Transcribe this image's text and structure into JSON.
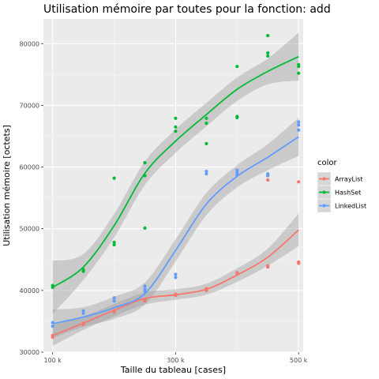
{
  "chart_data": {
    "type": "scatter",
    "title": "Utilisation mémoire par toutes pour la fonction: add",
    "xlabel": "Taille du tableau [cases]",
    "ylabel": "Utilisation mémoire [octets]",
    "x_ticks": [
      {
        "value": 100000,
        "label": "100 k"
      },
      {
        "value": 300000,
        "label": "300 k"
      },
      {
        "value": 500000,
        "label": "500 k"
      }
    ],
    "y_ticks": [
      {
        "value": 30000,
        "label": "30000"
      },
      {
        "value": 40000,
        "label": "40000"
      },
      {
        "value": 50000,
        "label": "50000"
      },
      {
        "value": 60000,
        "label": "60000"
      },
      {
        "value": 70000,
        "label": "70000"
      },
      {
        "value": 80000,
        "label": "80000"
      }
    ],
    "xlim": [
      85000,
      507500
    ],
    "ylim": [
      30000,
      84000
    ],
    "grid": true,
    "smooth": "loess with confidence band",
    "legend": {
      "title": "color",
      "position": "right"
    },
    "series": [
      {
        "name": "ArrayList",
        "color": "#F8766D",
        "points": [
          [
            100000,
            32700
          ],
          [
            100000,
            32400
          ],
          [
            150000,
            34700
          ],
          [
            150000,
            34500
          ],
          [
            200000,
            36500
          ],
          [
            200000,
            36700
          ],
          [
            250000,
            38500
          ],
          [
            250000,
            38300
          ],
          [
            300000,
            39400
          ],
          [
            300000,
            39200
          ],
          [
            350000,
            40300
          ],
          [
            350000,
            40000
          ],
          [
            400000,
            42900
          ],
          [
            400000,
            42700
          ],
          [
            450000,
            43800
          ],
          [
            450000,
            44000
          ],
          [
            450000,
            57900
          ],
          [
            500000,
            57600
          ],
          [
            500000,
            44600
          ],
          [
            500000,
            44400
          ]
        ],
        "smooth": [
          [
            100000,
            32700
          ],
          [
            150000,
            34700
          ],
          [
            200000,
            36800
          ],
          [
            250000,
            38700
          ],
          [
            300000,
            39300
          ],
          [
            350000,
            40200
          ],
          [
            400000,
            42500
          ],
          [
            450000,
            45400
          ],
          [
            500000,
            49800
          ]
        ],
        "band": [
          [
            100000,
            31000,
            34400
          ],
          [
            150000,
            33600,
            35800
          ],
          [
            200000,
            35800,
            37800
          ],
          [
            250000,
            37700,
            39700
          ],
          [
            300000,
            38500,
            40200
          ],
          [
            350000,
            39300,
            41100
          ],
          [
            400000,
            41400,
            43600
          ],
          [
            450000,
            44000,
            46800
          ],
          [
            500000,
            47200,
            52500
          ]
        ]
      },
      {
        "name": "HashSet",
        "color": "#00BA38",
        "points": [
          [
            100000,
            40800
          ],
          [
            100000,
            40500
          ],
          [
            150000,
            43400
          ],
          [
            150000,
            43100
          ],
          [
            200000,
            58200
          ],
          [
            200000,
            47800
          ],
          [
            200000,
            47400
          ],
          [
            250000,
            60700
          ],
          [
            250000,
            58600
          ],
          [
            250000,
            50100
          ],
          [
            300000,
            67900
          ],
          [
            300000,
            66500
          ],
          [
            300000,
            65800
          ],
          [
            350000,
            67900
          ],
          [
            350000,
            67100
          ],
          [
            350000,
            63800
          ],
          [
            400000,
            76300
          ],
          [
            400000,
            68200
          ],
          [
            400000,
            68000
          ],
          [
            450000,
            81300
          ],
          [
            450000,
            78500
          ],
          [
            450000,
            78000
          ],
          [
            500000,
            76600
          ],
          [
            500000,
            76300
          ],
          [
            500000,
            75200
          ]
        ],
        "smooth": [
          [
            100000,
            40500
          ],
          [
            150000,
            43800
          ],
          [
            200000,
            50500
          ],
          [
            250000,
            59000
          ],
          [
            300000,
            64200
          ],
          [
            350000,
            68500
          ],
          [
            400000,
            72600
          ],
          [
            450000,
            75500
          ],
          [
            500000,
            77900
          ]
        ],
        "band": [
          [
            100000,
            36200,
            44800
          ],
          [
            150000,
            41700,
            45900
          ],
          [
            200000,
            48600,
            52400
          ],
          [
            250000,
            57100,
            60900
          ],
          [
            300000,
            62300,
            66100
          ],
          [
            350000,
            66600,
            70400
          ],
          [
            400000,
            70700,
            74500
          ],
          [
            450000,
            73400,
            77600
          ],
          [
            500000,
            74000,
            81800
          ]
        ]
      },
      {
        "name": "LinkedList",
        "color": "#619CFF",
        "points": [
          [
            100000,
            34800
          ],
          [
            100000,
            34200
          ],
          [
            150000,
            36700
          ],
          [
            150000,
            36300
          ],
          [
            200000,
            38800
          ],
          [
            200000,
            38300
          ],
          [
            250000,
            40700
          ],
          [
            250000,
            40200
          ],
          [
            250000,
            39800
          ],
          [
            300000,
            42600
          ],
          [
            300000,
            42100
          ],
          [
            350000,
            59300
          ],
          [
            350000,
            58900
          ],
          [
            400000,
            59500
          ],
          [
            400000,
            59100
          ],
          [
            400000,
            58700
          ],
          [
            450000,
            58900
          ],
          [
            450000,
            58600
          ],
          [
            500000,
            67300
          ],
          [
            500000,
            66800
          ],
          [
            500000,
            66000
          ]
        ],
        "smooth": [
          [
            100000,
            34600
          ],
          [
            150000,
            35700
          ],
          [
            200000,
            37200
          ],
          [
            250000,
            39500
          ],
          [
            300000,
            46500
          ],
          [
            350000,
            54000
          ],
          [
            400000,
            58500
          ],
          [
            450000,
            61600
          ],
          [
            500000,
            64900
          ]
        ],
        "band": [
          [
            100000,
            32300,
            36900
          ],
          [
            150000,
            34100,
            37300
          ],
          [
            200000,
            35400,
            39000
          ],
          [
            250000,
            37700,
            41300
          ],
          [
            300000,
            44700,
            48300
          ],
          [
            350000,
            52200,
            55800
          ],
          [
            400000,
            56700,
            60300
          ],
          [
            450000,
            59500,
            63700
          ],
          [
            500000,
            61800,
            68000
          ]
        ]
      }
    ]
  }
}
